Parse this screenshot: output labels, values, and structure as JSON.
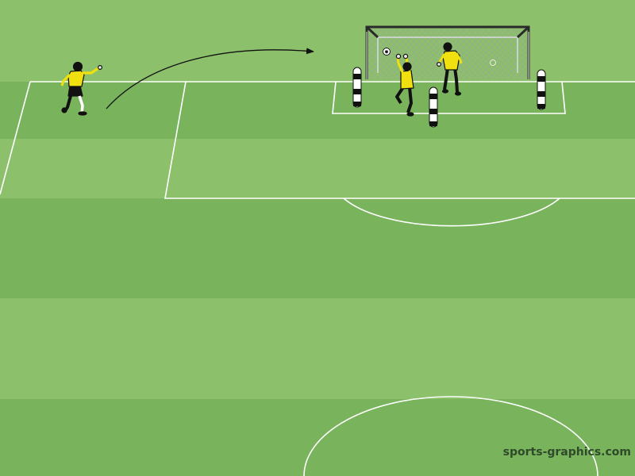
{
  "diagram": {
    "watermark": "sports-graphics.com",
    "colors": {
      "grass_light": "#8cc06b",
      "grass_dark": "#79b45d",
      "lines": "#ffffff",
      "jersey": "#f0e010",
      "outline": "#111111",
      "watermark": "#2f4a2a"
    },
    "icons": [
      "soccer-ball-icon",
      "arrow-icon",
      "player-icon",
      "goalkeeper-icon",
      "mannequin-icon",
      "goal-net-icon"
    ]
  }
}
